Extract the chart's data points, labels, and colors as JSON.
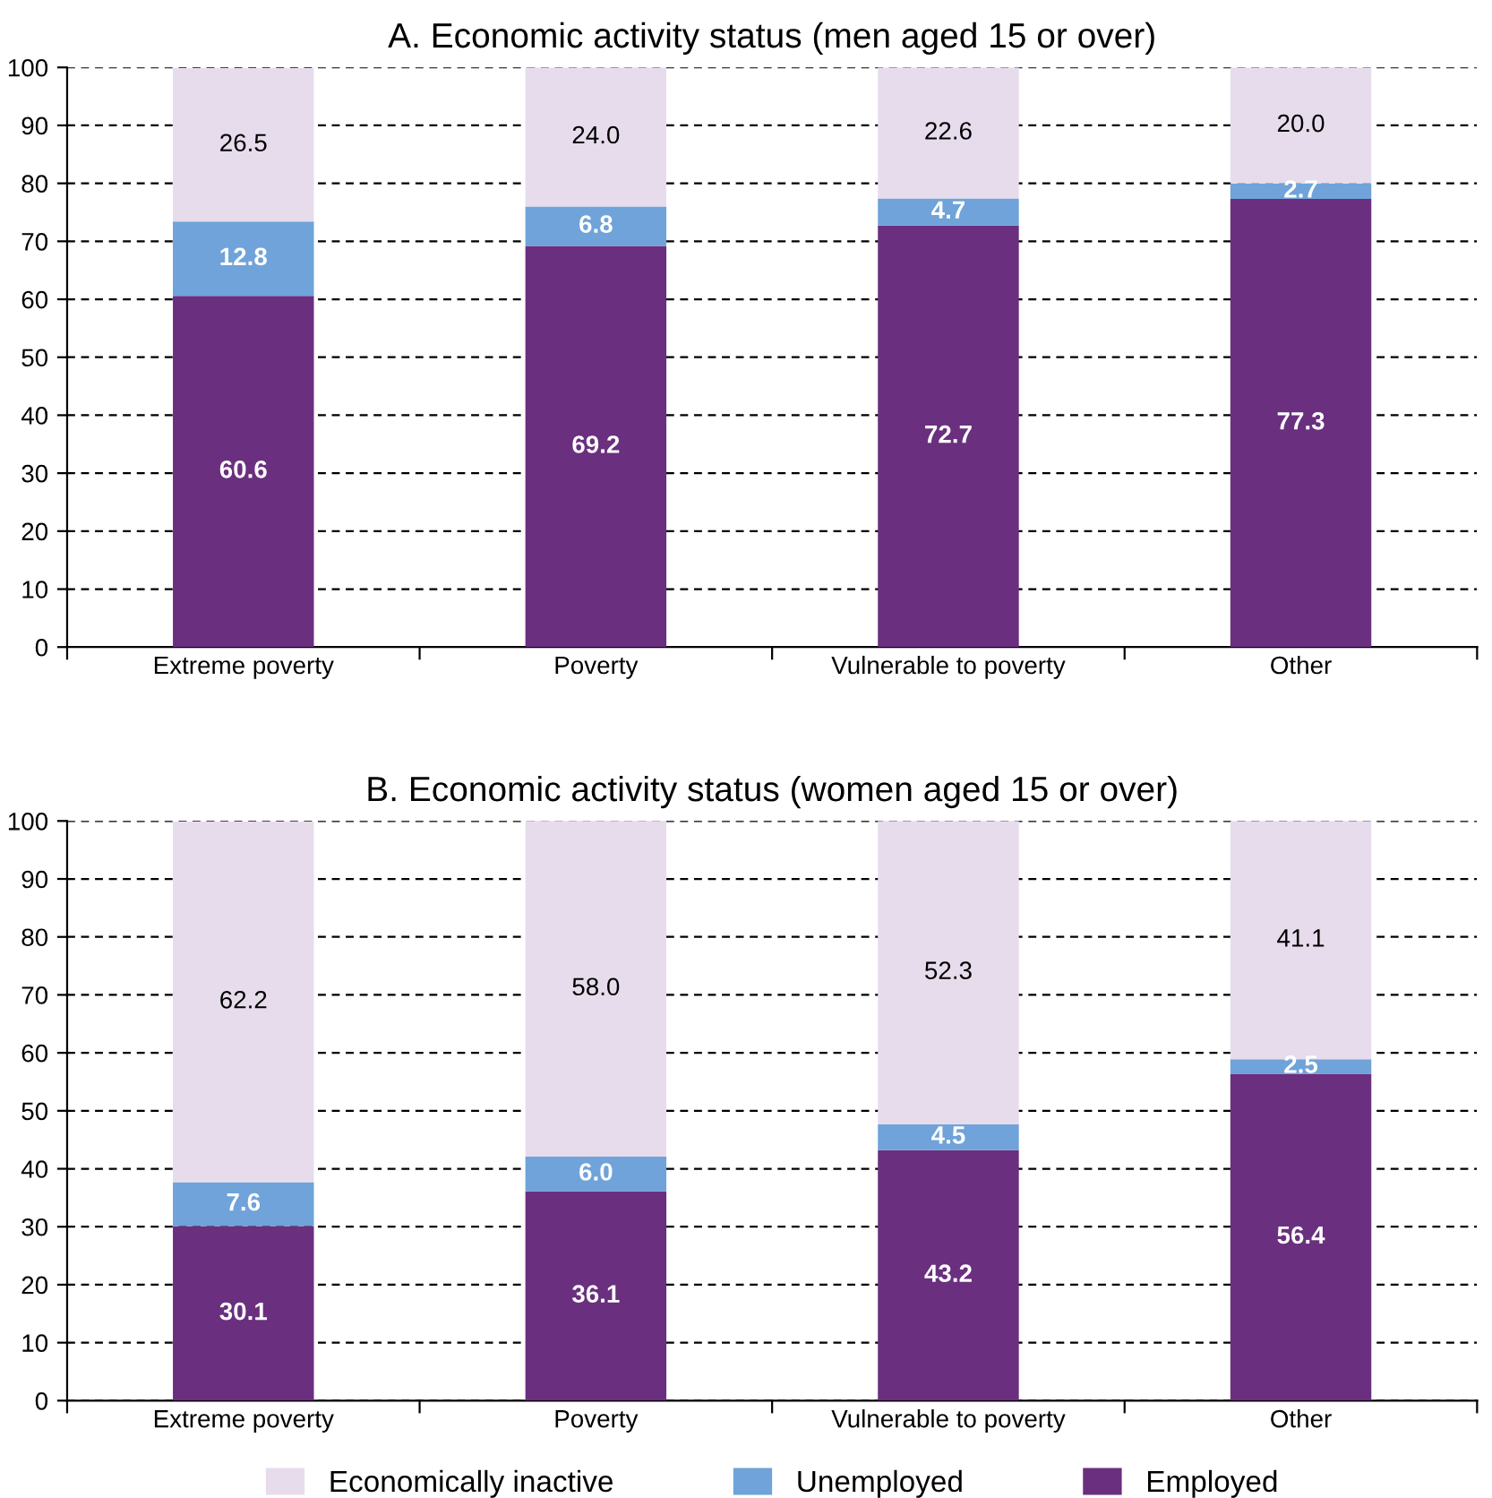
{
  "chart_data": [
    {
      "type": "bar",
      "title": "A. Economic activity status (men aged 15 or over)",
      "categories": [
        "Extreme poverty",
        "Poverty",
        "Vulnerable to poverty",
        "Other"
      ],
      "stacked": true,
      "ylim": [
        0,
        100
      ],
      "yticks": [
        0,
        10,
        20,
        30,
        40,
        50,
        60,
        70,
        80,
        90,
        100
      ],
      "grid": "y",
      "legend": false,
      "series": [
        {
          "color": "#6a2f7e",
          "values": [
            60.6,
            69.2,
            72.7,
            77.3
          ],
          "value_labels": [
            "60.6",
            "69.2",
            "72.7",
            "77.3"
          ]
        },
        {
          "color": "#6fa3d9",
          "values": [
            12.8,
            6.8,
            4.7,
            2.7
          ],
          "value_labels": [
            "12.8",
            "6.8",
            "4.7",
            "2.7"
          ]
        },
        {
          "color": "#e7dcec",
          "values": [
            26.5,
            24.0,
            22.6,
            20.0
          ],
          "value_labels": [
            "26.5",
            "24.0",
            "22.6",
            "20.0"
          ]
        }
      ]
    },
    {
      "type": "bar",
      "title": "B. Economic activity status (women aged 15 or over)",
      "categories": [
        "Extreme poverty",
        "Poverty",
        "Vulnerable to poverty",
        "Other"
      ],
      "stacked": true,
      "ylim": [
        0,
        100
      ],
      "yticks": [
        0,
        10,
        20,
        30,
        40,
        50,
        60,
        70,
        80,
        90,
        100
      ],
      "grid": "y",
      "legend": "bottom",
      "series": [
        {
          "name": "Employed",
          "color": "#6a2f7e",
          "values": [
            30.1,
            36.1,
            43.2,
            56.4
          ],
          "value_labels": [
            "30.1",
            "36.1",
            "43.2",
            "56.4"
          ]
        },
        {
          "name": "Unemployed",
          "color": "#6fa3d9",
          "values": [
            7.6,
            6.0,
            4.5,
            2.5
          ],
          "value_labels": [
            "7.6",
            "6.0",
            "4.5",
            "2.5"
          ]
        },
        {
          "name": "Economically inactive",
          "color": "#e7dcec",
          "values": [
            62.2,
            58.0,
            52.3,
            41.1
          ],
          "value_labels": [
            "62.2",
            "58.0",
            "52.3",
            "41.1"
          ]
        }
      ]
    }
  ]
}
